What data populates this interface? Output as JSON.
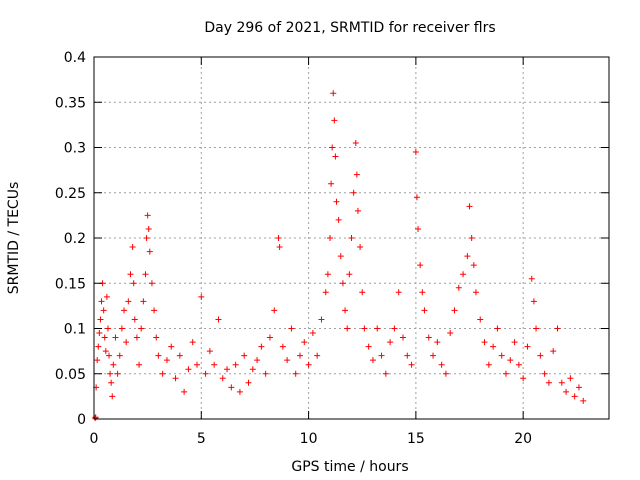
{
  "chart_data": {
    "type": "scatter",
    "title": "Day 296 of 2021, SRMTID for receiver flrs",
    "xlabel": "GPS time / hours",
    "ylabel": "SRMTID / TECUs",
    "xlim": [
      0,
      24
    ],
    "ylim": [
      0,
      0.4
    ],
    "x_ticks": [
      0,
      5,
      10,
      15,
      20
    ],
    "x_tick_labels": [
      "0",
      "5",
      "10",
      "15",
      "20"
    ],
    "y_ticks": [
      0,
      0.05,
      0.1,
      0.15,
      0.2,
      0.25,
      0.3,
      0.35,
      0.4
    ],
    "y_tick_labels": [
      "0",
      "0.05",
      "0.1",
      "0.15",
      "0.2",
      "0.25",
      "0.3",
      "0.35",
      "0.4"
    ],
    "grid": true,
    "marker": "plus",
    "color": "#ff0000",
    "series": [
      {
        "points": [
          [
            0.05,
            0.001
          ],
          [
            0.08,
            0.002
          ],
          [
            0.1,
            0.035
          ],
          [
            0.15,
            0.065
          ],
          [
            0.2,
            0.08
          ],
          [
            0.25,
            0.095
          ],
          [
            0.3,
            0.11
          ],
          [
            0.35,
            0.13
          ],
          [
            0.4,
            0.15
          ],
          [
            0.45,
            0.12
          ],
          [
            0.5,
            0.09
          ],
          [
            0.55,
            0.075
          ],
          [
            0.6,
            0.135
          ],
          [
            0.65,
            0.1
          ],
          [
            0.7,
            0.07
          ],
          [
            0.75,
            0.05
          ],
          [
            0.8,
            0.04
          ],
          [
            0.85,
            0.025
          ],
          [
            0.9,
            0.06
          ],
          [
            1.0,
            0.09
          ],
          [
            1.1,
            0.05
          ],
          [
            1.2,
            0.07
          ],
          [
            1.3,
            0.1
          ],
          [
            1.4,
            0.12
          ],
          [
            1.5,
            0.085
          ],
          [
            1.6,
            0.13
          ],
          [
            1.7,
            0.16
          ],
          [
            1.8,
            0.19
          ],
          [
            1.85,
            0.15
          ],
          [
            1.9,
            0.11
          ],
          [
            2.0,
            0.09
          ],
          [
            2.1,
            0.06
          ],
          [
            2.2,
            0.1
          ],
          [
            2.3,
            0.13
          ],
          [
            2.4,
            0.16
          ],
          [
            2.45,
            0.2
          ],
          [
            2.5,
            0.225
          ],
          [
            2.55,
            0.21
          ],
          [
            2.6,
            0.185
          ],
          [
            2.7,
            0.15
          ],
          [
            2.8,
            0.12
          ],
          [
            2.9,
            0.09
          ],
          [
            3.0,
            0.07
          ],
          [
            3.2,
            0.05
          ],
          [
            3.4,
            0.065
          ],
          [
            3.6,
            0.08
          ],
          [
            3.8,
            0.045
          ],
          [
            4.0,
            0.07
          ],
          [
            4.2,
            0.03
          ],
          [
            4.4,
            0.055
          ],
          [
            4.6,
            0.085
          ],
          [
            4.8,
            0.06
          ],
          [
            5.0,
            0.135
          ],
          [
            5.2,
            0.05
          ],
          [
            5.4,
            0.075
          ],
          [
            5.6,
            0.06
          ],
          [
            5.8,
            0.11
          ],
          [
            6.0,
            0.045
          ],
          [
            6.2,
            0.055
          ],
          [
            6.4,
            0.035
          ],
          [
            6.6,
            0.06
          ],
          [
            6.8,
            0.03
          ],
          [
            7.0,
            0.07
          ],
          [
            7.2,
            0.04
          ],
          [
            7.4,
            0.055
          ],
          [
            7.6,
            0.065
          ],
          [
            7.8,
            0.08
          ],
          [
            8.0,
            0.05
          ],
          [
            8.2,
            0.09
          ],
          [
            8.4,
            0.12
          ],
          [
            8.6,
            0.2
          ],
          [
            8.65,
            0.19
          ],
          [
            8.8,
            0.08
          ],
          [
            9.0,
            0.065
          ],
          [
            9.2,
            0.1
          ],
          [
            9.4,
            0.05
          ],
          [
            9.6,
            0.07
          ],
          [
            9.8,
            0.085
          ],
          [
            10.0,
            0.06
          ],
          [
            10.2,
            0.095
          ],
          [
            10.4,
            0.07
          ],
          [
            10.6,
            0.11
          ],
          [
            10.8,
            0.14
          ],
          [
            10.9,
            0.16
          ],
          [
            11.0,
            0.2
          ],
          [
            11.05,
            0.26
          ],
          [
            11.1,
            0.3
          ],
          [
            11.15,
            0.36
          ],
          [
            11.2,
            0.33
          ],
          [
            11.25,
            0.29
          ],
          [
            11.3,
            0.24
          ],
          [
            11.4,
            0.22
          ],
          [
            11.5,
            0.18
          ],
          [
            11.6,
            0.15
          ],
          [
            11.7,
            0.12
          ],
          [
            11.8,
            0.1
          ],
          [
            11.9,
            0.16
          ],
          [
            12.0,
            0.2
          ],
          [
            12.1,
            0.25
          ],
          [
            12.2,
            0.305
          ],
          [
            12.25,
            0.27
          ],
          [
            12.3,
            0.23
          ],
          [
            12.4,
            0.19
          ],
          [
            12.5,
            0.14
          ],
          [
            12.6,
            0.1
          ],
          [
            12.8,
            0.08
          ],
          [
            13.0,
            0.065
          ],
          [
            13.2,
            0.1
          ],
          [
            13.4,
            0.07
          ],
          [
            13.6,
            0.05
          ],
          [
            13.8,
            0.085
          ],
          [
            14.0,
            0.1
          ],
          [
            14.2,
            0.14
          ],
          [
            14.4,
            0.09
          ],
          [
            14.6,
            0.07
          ],
          [
            14.8,
            0.06
          ],
          [
            15.0,
            0.295
          ],
          [
            15.05,
            0.245
          ],
          [
            15.1,
            0.21
          ],
          [
            15.2,
            0.17
          ],
          [
            15.3,
            0.14
          ],
          [
            15.4,
            0.12
          ],
          [
            15.6,
            0.09
          ],
          [
            15.8,
            0.07
          ],
          [
            16.0,
            0.085
          ],
          [
            16.2,
            0.06
          ],
          [
            16.4,
            0.05
          ],
          [
            16.6,
            0.095
          ],
          [
            16.8,
            0.12
          ],
          [
            17.0,
            0.145
          ],
          [
            17.2,
            0.16
          ],
          [
            17.4,
            0.18
          ],
          [
            17.5,
            0.235
          ],
          [
            17.6,
            0.2
          ],
          [
            17.7,
            0.17
          ],
          [
            17.8,
            0.14
          ],
          [
            18.0,
            0.11
          ],
          [
            18.2,
            0.085
          ],
          [
            18.4,
            0.06
          ],
          [
            18.6,
            0.08
          ],
          [
            18.8,
            0.1
          ],
          [
            19.0,
            0.07
          ],
          [
            19.2,
            0.05
          ],
          [
            19.4,
            0.065
          ],
          [
            19.6,
            0.085
          ],
          [
            19.8,
            0.06
          ],
          [
            20.0,
            0.045
          ],
          [
            20.2,
            0.08
          ],
          [
            20.4,
            0.155
          ],
          [
            20.5,
            0.13
          ],
          [
            20.6,
            0.1
          ],
          [
            20.8,
            0.07
          ],
          [
            21.0,
            0.05
          ],
          [
            21.2,
            0.04
          ],
          [
            21.4,
            0.075
          ],
          [
            21.6,
            0.1
          ],
          [
            21.8,
            0.04
          ],
          [
            22.0,
            0.03
          ],
          [
            22.2,
            0.045
          ],
          [
            22.4,
            0.025
          ],
          [
            22.6,
            0.035
          ],
          [
            22.8,
            0.02
          ]
        ]
      }
    ]
  }
}
